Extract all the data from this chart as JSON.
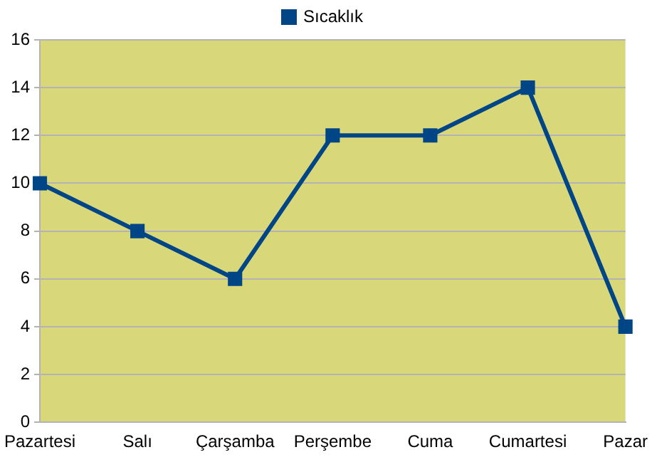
{
  "chart_data": {
    "type": "line",
    "categories": [
      "Pazartesi",
      "Salı",
      "Çarşamba",
      "Perşembe",
      "Cuma",
      "Cumartesi",
      "Pazar"
    ],
    "series": [
      {
        "name": "Sıcaklık",
        "color": "#004586",
        "values": [
          10,
          8,
          6,
          12,
          12,
          14,
          4
        ]
      }
    ],
    "ylim": [
      0,
      16
    ],
    "yticks": [
      0,
      2,
      4,
      6,
      8,
      10,
      12,
      14,
      16
    ],
    "grid": "y",
    "legend": "top",
    "marker": "square",
    "line_style": "solid"
  }
}
